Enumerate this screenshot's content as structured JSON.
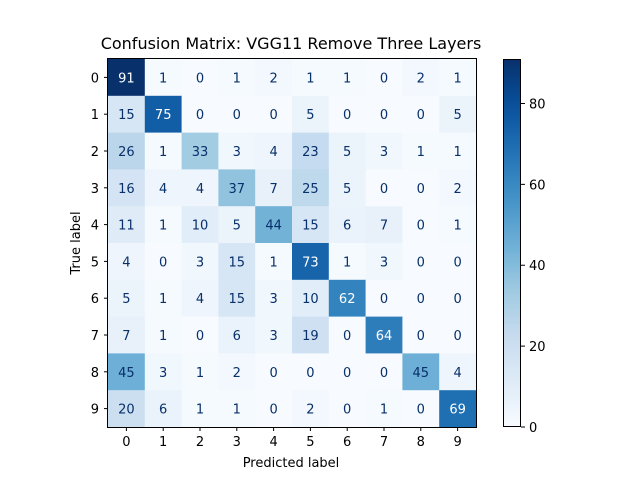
{
  "chart_data": {
    "type": "heatmap",
    "title": "Confusion Matrix: VGG11 Remove Three Layers",
    "xlabel": "Predicted label",
    "ylabel": "True label",
    "x_categories": [
      "0",
      "1",
      "2",
      "3",
      "4",
      "5",
      "6",
      "7",
      "8",
      "9"
    ],
    "y_categories": [
      "0",
      "1",
      "2",
      "3",
      "4",
      "5",
      "6",
      "7",
      "8",
      "9"
    ],
    "matrix": [
      [
        91,
        1,
        0,
        1,
        2,
        1,
        1,
        0,
        2,
        1
      ],
      [
        15,
        75,
        0,
        0,
        0,
        5,
        0,
        0,
        0,
        5
      ],
      [
        26,
        1,
        33,
        3,
        4,
        23,
        5,
        3,
        1,
        1
      ],
      [
        16,
        4,
        4,
        37,
        7,
        25,
        5,
        0,
        0,
        2
      ],
      [
        11,
        1,
        10,
        5,
        44,
        15,
        6,
        7,
        0,
        1
      ],
      [
        4,
        0,
        3,
        15,
        1,
        73,
        1,
        3,
        0,
        0
      ],
      [
        5,
        1,
        4,
        15,
        3,
        10,
        62,
        0,
        0,
        0
      ],
      [
        7,
        1,
        0,
        6,
        3,
        19,
        0,
        64,
        0,
        0
      ],
      [
        45,
        3,
        1,
        2,
        0,
        0,
        0,
        0,
        45,
        4
      ],
      [
        20,
        6,
        1,
        1,
        0,
        2,
        0,
        1,
        0,
        69
      ]
    ],
    "colormap": "Blues",
    "vmin": 0,
    "vmax": 91,
    "colorbar_ticks": [
      0,
      20,
      40,
      60,
      80
    ],
    "grid": false
  }
}
